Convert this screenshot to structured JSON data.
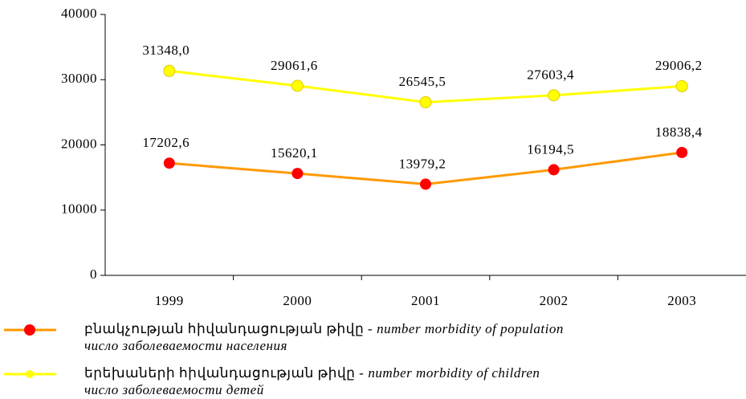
{
  "chart_data": {
    "type": "line",
    "categories": [
      "1999",
      "2000",
      "2001",
      "2002",
      "2003"
    ],
    "series": [
      {
        "name": "բնակչության հիվանդացության թիվը -",
        "name_translation": "number morbidity of population",
        "name_russian": "число заболеваемости населения",
        "color": "#ff9900",
        "marker_color": "#ff0000",
        "values": [
          17202.6,
          15620.1,
          13979.2,
          16194.5,
          18838.4
        ],
        "value_labels": [
          "17202,6",
          "15620,1",
          "13979,2",
          "16194,5",
          "18838,4"
        ]
      },
      {
        "name": "երեխաների հիվանդացության թիվը -",
        "name_translation": "number morbidity of children",
        "name_russian": "число заболеваемости детей",
        "color": "#ffff00",
        "marker_color": "#ffff00",
        "values": [
          31348.0,
          29061.6,
          26545.5,
          27603.4,
          29006.2
        ],
        "value_labels": [
          "31348,0",
          "29061,6",
          "26545,5",
          "27603,4",
          "29006,2"
        ]
      }
    ],
    "ylim": [
      0,
      40000
    ],
    "yticks": [
      0,
      10000,
      20000,
      30000,
      40000
    ],
    "grid": false
  }
}
